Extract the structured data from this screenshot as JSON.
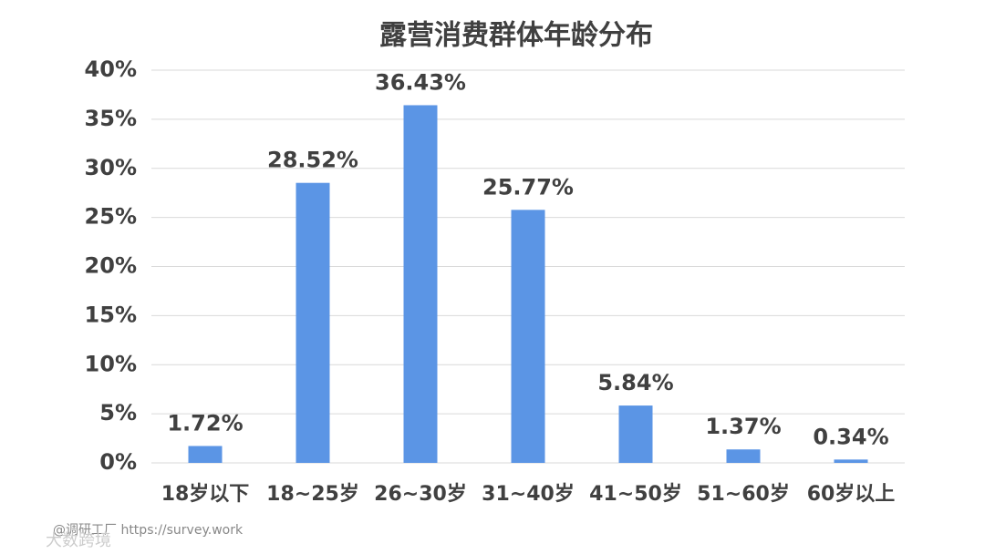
{
  "chart_data": {
    "type": "bar",
    "title": "露营消费群体年龄分布",
    "categories": [
      "18岁以下",
      "18~25岁",
      "26~30岁",
      "31~40岁",
      "41~50岁",
      "51~60岁",
      "60岁以上"
    ],
    "values": [
      1.72,
      28.52,
      36.43,
      25.77,
      5.84,
      1.37,
      0.34
    ],
    "value_labels": [
      "1.72%",
      "28.52%",
      "36.43%",
      "25.77%",
      "5.84%",
      "1.37%",
      "0.34%"
    ],
    "color": "#5b95e5",
    "ylim": [
      0,
      40
    ],
    "yticks": [
      {
        "value": 0,
        "label": "0%"
      },
      {
        "value": 5,
        "label": "5%"
      },
      {
        "value": 10,
        "label": "10%"
      },
      {
        "value": 15,
        "label": "15%"
      },
      {
        "value": 20,
        "label": "20%"
      },
      {
        "value": 25,
        "label": "25%"
      },
      {
        "value": 30,
        "label": "30%"
      },
      {
        "value": 35,
        "label": "35%"
      },
      {
        "value": 40,
        "label": "40%"
      }
    ],
    "grid": true,
    "watermark": "@调研工厂 https://survey.work",
    "logo": "大数跨境"
  }
}
